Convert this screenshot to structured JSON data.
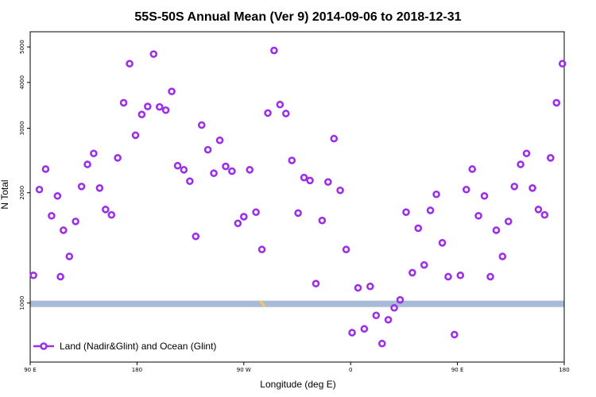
{
  "chart_data": {
    "type": "scatter",
    "title": "55S-50S Annual Mean (Ver 9)   2014-09-06 to 2018-12-31",
    "xlabel": "Longitude (deg E)",
    "ylabel": "N Total",
    "x_scale": "linear",
    "y_scale": "log",
    "xlim": [
      90,
      270
    ],
    "ylim": [
      690,
      5500
    ],
    "x_ticks": [
      {
        "value": 90,
        "label": "90 E"
      },
      {
        "value": 126,
        "label": "180"
      },
      {
        "value": 162,
        "label": "90 W"
      },
      {
        "value": 198,
        "label": "0"
      },
      {
        "value": 234,
        "label": "90 E"
      },
      {
        "value": 270,
        "label": "180"
      }
    ],
    "y_ticks": [
      {
        "value": 1000,
        "label": "1000"
      },
      {
        "value": 2000,
        "label": "2000"
      },
      {
        "value": 3000,
        "label": "3000"
      },
      {
        "value": 4000,
        "label": "4000"
      },
      {
        "value": 5000,
        "label": "5000"
      }
    ],
    "legend": {
      "position": "bottom-left"
    },
    "land_band": {
      "y_low": 975,
      "y_high": 1015,
      "color": "#a9bad9",
      "accent_color": "#f2c760"
    },
    "series": [
      {
        "name": "Land (Nadir&Glint) and Ocean (Glint)",
        "color": "#9b30e8",
        "marker": "open-circle",
        "points": [
          [
            91.1,
            1190
          ],
          [
            93.1,
            2040
          ],
          [
            95.2,
            2320
          ],
          [
            97.2,
            1730
          ],
          [
            99.2,
            1960
          ],
          [
            100.2,
            1180
          ],
          [
            101.2,
            1580
          ],
          [
            103.2,
            1340
          ],
          [
            105.3,
            1670
          ],
          [
            107.3,
            2080
          ],
          [
            109.3,
            2390
          ],
          [
            111.4,
            2560
          ],
          [
            113.4,
            2060
          ],
          [
            115.4,
            1800
          ],
          [
            117.4,
            1740
          ],
          [
            119.5,
            2490
          ],
          [
            121.5,
            3520
          ],
          [
            123.5,
            4500
          ],
          [
            125.5,
            2870
          ],
          [
            127.6,
            3270
          ],
          [
            129.6,
            3440
          ],
          [
            131.6,
            4780
          ],
          [
            133.6,
            3430
          ],
          [
            135.7,
            3360
          ],
          [
            137.7,
            3780
          ],
          [
            139.7,
            2370
          ],
          [
            141.8,
            2310
          ],
          [
            143.8,
            2150
          ],
          [
            145.8,
            1520
          ],
          [
            147.8,
            3060
          ],
          [
            149.9,
            2620
          ],
          [
            151.9,
            2260
          ],
          [
            153.9,
            2780
          ],
          [
            155.9,
            2360
          ],
          [
            158.0,
            2290
          ],
          [
            160.0,
            1650
          ],
          [
            162.0,
            1720
          ],
          [
            164.0,
            2310
          ],
          [
            166.1,
            1770
          ],
          [
            168.1,
            1400
          ],
          [
            170.1,
            3300
          ],
          [
            172.2,
            4890
          ],
          [
            174.2,
            3480
          ],
          [
            176.2,
            3290
          ],
          [
            178.2,
            2450
          ],
          [
            180.3,
            1760
          ],
          [
            182.3,
            2200
          ],
          [
            184.3,
            2160
          ],
          [
            186.3,
            1130
          ],
          [
            188.4,
            1680
          ],
          [
            190.4,
            2140
          ],
          [
            192.4,
            2810
          ],
          [
            194.5,
            2030
          ],
          [
            196.5,
            1400
          ],
          [
            198.5,
            830
          ],
          [
            200.5,
            1100
          ],
          [
            202.6,
            850
          ],
          [
            204.6,
            1110
          ],
          [
            206.6,
            925
          ],
          [
            208.6,
            775
          ],
          [
            210.7,
            900
          ],
          [
            212.7,
            970
          ],
          [
            214.7,
            1020
          ],
          [
            216.7,
            1770
          ],
          [
            218.8,
            1210
          ],
          [
            220.8,
            1600
          ],
          [
            222.8,
            1270
          ],
          [
            224.9,
            1790
          ],
          [
            226.9,
            1980
          ],
          [
            228.9,
            1460
          ],
          [
            230.9,
            1180
          ],
          [
            233.0,
            820
          ],
          [
            235.0,
            1190
          ],
          [
            237.0,
            2040
          ],
          [
            239.0,
            2320
          ],
          [
            241.1,
            1730
          ],
          [
            243.1,
            1960
          ],
          [
            245.1,
            1180
          ],
          [
            247.1,
            1580
          ],
          [
            249.2,
            1340
          ],
          [
            251.2,
            1670
          ],
          [
            253.2,
            2080
          ],
          [
            255.3,
            2390
          ],
          [
            257.3,
            2560
          ],
          [
            259.3,
            2060
          ],
          [
            261.3,
            1800
          ],
          [
            263.4,
            1740
          ],
          [
            265.4,
            2490
          ],
          [
            267.4,
            3520
          ],
          [
            269.4,
            4500
          ]
        ]
      }
    ]
  }
}
